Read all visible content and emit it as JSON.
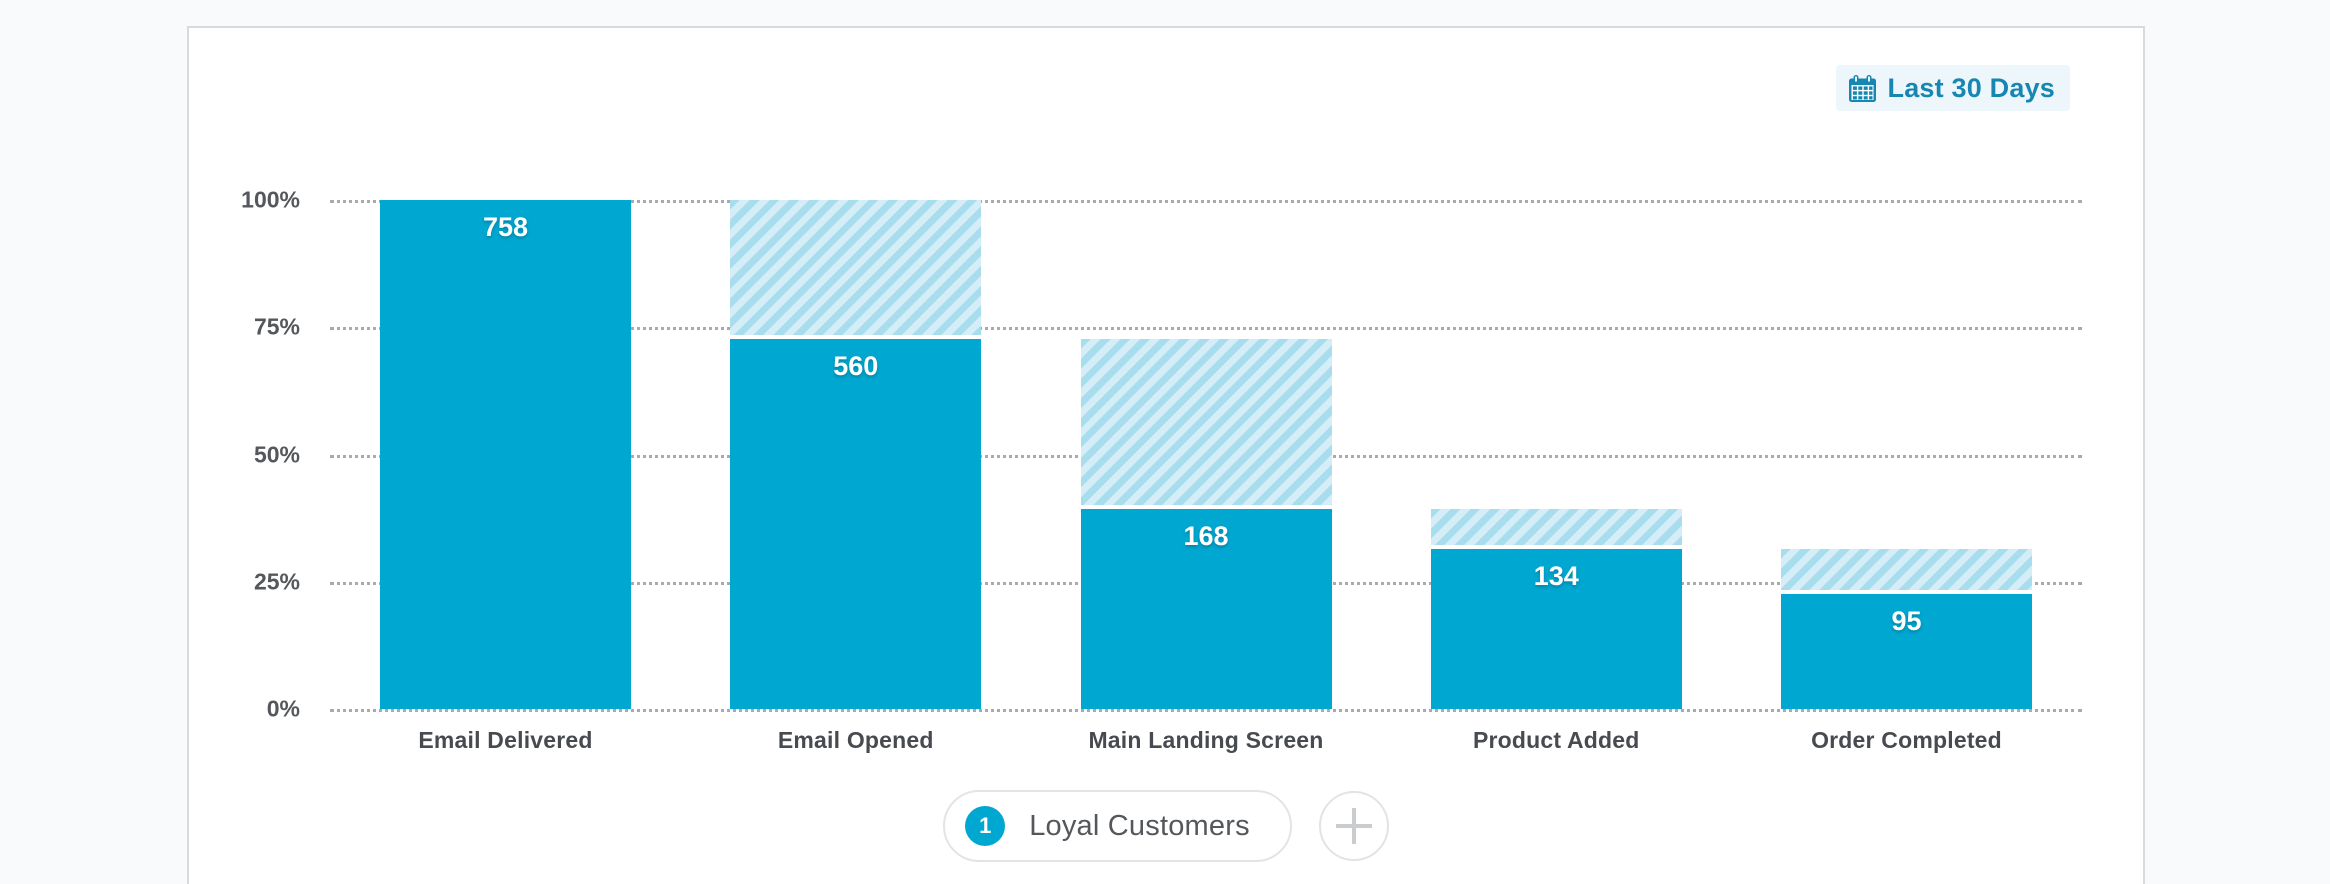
{
  "header": {
    "date_range_label": "Last 30 Days",
    "date_range_icon": "calendar-icon"
  },
  "chart_data": {
    "type": "bar",
    "subtype": "funnel",
    "title": "",
    "xlabel": "",
    "ylabel": "",
    "categories": [
      "Email Delivered",
      "Email Opened",
      "Main Landing Screen",
      "Product Added",
      "Order Completed"
    ],
    "values": [
      758,
      560,
      168,
      134,
      95
    ],
    "series": [
      {
        "name": "Loyal Customers",
        "values": [
          758,
          560,
          168,
          134,
          95
        ]
      }
    ],
    "displayed_solid_height_pct": [
      100,
      72.7,
      39.3,
      31.4,
      22.6
    ],
    "yticks": [
      "100%",
      "75%",
      "50%",
      "25%",
      "0%"
    ],
    "ylim": [
      0,
      100
    ],
    "grid": "horizontal-dotted",
    "legend_position": "none",
    "bar_color": "#00A7D0",
    "hatch_stripe_colors": [
      "#A8DDEE",
      "#D5EDF7"
    ]
  },
  "segments": {
    "pill": {
      "index": "1",
      "label": "Loyal Customers"
    },
    "add_button_icon": "plus-icon"
  },
  "colors": {
    "accent": "#00A7D0",
    "chip_text": "#1787B2",
    "chip_background": "#EDF6FB",
    "axis_label": "#54575B",
    "category_label": "#474B50",
    "card_border": "#D8DADC",
    "page_background": "#F9FAFB"
  }
}
